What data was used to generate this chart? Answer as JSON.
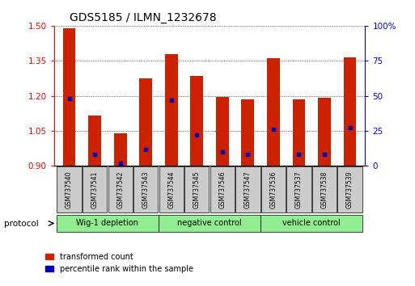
{
  "title": "GDS5185 / ILMN_1232678",
  "samples": [
    "GSM737540",
    "GSM737541",
    "GSM737542",
    "GSM737543",
    "GSM737544",
    "GSM737545",
    "GSM737546",
    "GSM737547",
    "GSM737536",
    "GSM737537",
    "GSM737538",
    "GSM737539"
  ],
  "group_labels": [
    "Wig-1 depletion",
    "negative control",
    "vehicle control"
  ],
  "transformed_counts": [
    1.49,
    1.115,
    1.04,
    1.275,
    1.38,
    1.285,
    1.195,
    1.185,
    1.36,
    1.185,
    1.19,
    1.365
  ],
  "percentile_ranks_pct": [
    48,
    8,
    2,
    12,
    47,
    22,
    10,
    8,
    26,
    8,
    8,
    27
  ],
  "ylim_left": [
    0.9,
    1.5
  ],
  "ylim_right": [
    0,
    100
  ],
  "yticks_left": [
    0.9,
    1.05,
    1.2,
    1.35,
    1.5
  ],
  "yticks_right": [
    0,
    25,
    50,
    75,
    100
  ],
  "bar_color": "#CC2200",
  "blue_color": "#0000BB",
  "bar_width": 0.5,
  "legend_labels": [
    "transformed count",
    "percentile rank within the sample"
  ],
  "protocol_label": "protocol",
  "group_ranges": [
    [
      0,
      3
    ],
    [
      4,
      7
    ],
    [
      8,
      11
    ]
  ],
  "sample_box_color": "#CCCCCC",
  "group_box_color": "#90EE90",
  "figsize": [
    5.13,
    3.54
  ],
  "dpi": 100
}
